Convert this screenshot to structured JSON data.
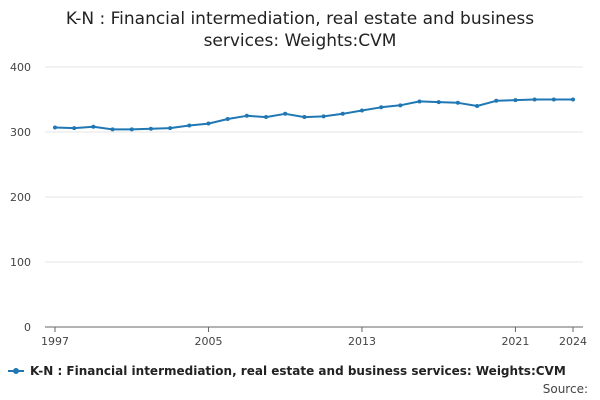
{
  "title_line1": "K-N : Financial intermediation, real estate and business",
  "title_line2": "services: Weights:CVM",
  "source_label": "Source:",
  "colors": {
    "series": "#1f77b4",
    "grid": "#e6e6e6",
    "axis": "#666666"
  },
  "chart_data": {
    "type": "line",
    "title": "K-N : Financial intermediation, real estate and business services: Weights:CVM",
    "xlabel": "",
    "ylabel": "",
    "ylim": [
      0,
      400
    ],
    "yticks": [
      0,
      100,
      200,
      300,
      400
    ],
    "xlim": [
      1997,
      2024
    ],
    "xticks": [
      1997,
      2005,
      2013,
      2021,
      2024
    ],
    "grid": true,
    "legend_position": "bottom-left",
    "series": [
      {
        "name": "K-N : Financial intermediation, real estate and business services: Weights:CVM",
        "x": [
          1997,
          1998,
          1999,
          2000,
          2001,
          2002,
          2003,
          2004,
          2005,
          2006,
          2007,
          2008,
          2009,
          2010,
          2011,
          2012,
          2013,
          2014,
          2015,
          2016,
          2017,
          2018,
          2019,
          2020,
          2021,
          2022,
          2023,
          2024
        ],
        "values": [
          307,
          306,
          308,
          304,
          304,
          305,
          306,
          310,
          313,
          320,
          325,
          323,
          328,
          323,
          324,
          328,
          333,
          338,
          341,
          347,
          346,
          345,
          340,
          348,
          349,
          350,
          350,
          350
        ]
      }
    ]
  }
}
